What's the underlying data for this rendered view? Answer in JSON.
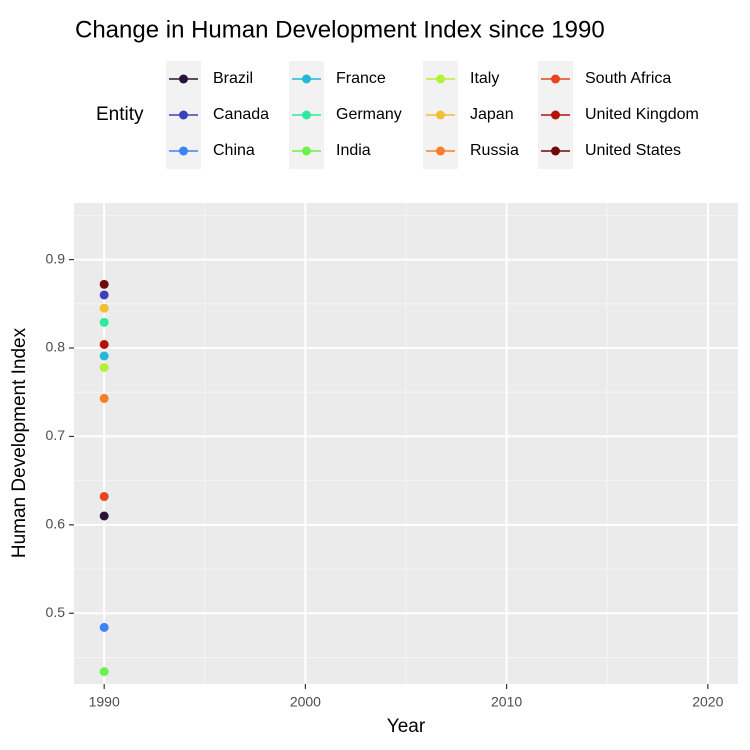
{
  "chart_data": {
    "type": "scatter",
    "title": "Change in Human Development Index since 1990",
    "xlabel": "Year",
    "ylabel": "Human Development Index",
    "xlim": [
      1988.5,
      2021.5
    ],
    "ylim": [
      0.42,
      0.964
    ],
    "xticks": [
      1990,
      2000,
      2010,
      2020
    ],
    "yticks": [
      0.5,
      0.6,
      0.7,
      0.8,
      0.9
    ],
    "grid": true,
    "legend": {
      "title": "Entity",
      "position": "top"
    },
    "series": [
      {
        "name": "Brazil",
        "color": "#2b1337",
        "x": [
          1990
        ],
        "y": [
          0.61
        ]
      },
      {
        "name": "Canada",
        "color": "#3f3fbd",
        "x": [
          1990
        ],
        "y": [
          0.86
        ]
      },
      {
        "name": "China",
        "color": "#3b83f6",
        "x": [
          1990
        ],
        "y": [
          0.484
        ]
      },
      {
        "name": "France",
        "color": "#23b8d8",
        "x": [
          1990
        ],
        "y": [
          0.791
        ]
      },
      {
        "name": "Germany",
        "color": "#2ee9a0",
        "x": [
          1990
        ],
        "y": [
          0.829
        ]
      },
      {
        "name": "India",
        "color": "#6bf24a",
        "x": [
          1990
        ],
        "y": [
          0.434
        ]
      },
      {
        "name": "Italy",
        "color": "#b6f036",
        "x": [
          1990
        ],
        "y": [
          0.778
        ]
      },
      {
        "name": "Japan",
        "color": "#efc033",
        "x": [
          1990
        ],
        "y": [
          0.845
        ]
      },
      {
        "name": "Russia",
        "color": "#f97f27",
        "x": [
          1990
        ],
        "y": [
          0.743
        ]
      },
      {
        "name": "South Africa",
        "color": "#e8431c",
        "x": [
          1990
        ],
        "y": [
          0.632
        ]
      },
      {
        "name": "United Kingdom",
        "color": "#b31308",
        "x": [
          1990
        ],
        "y": [
          0.804
        ]
      },
      {
        "name": "United States",
        "color": "#6e0a0a",
        "x": [
          1990
        ],
        "y": [
          0.872
        ]
      }
    ]
  }
}
